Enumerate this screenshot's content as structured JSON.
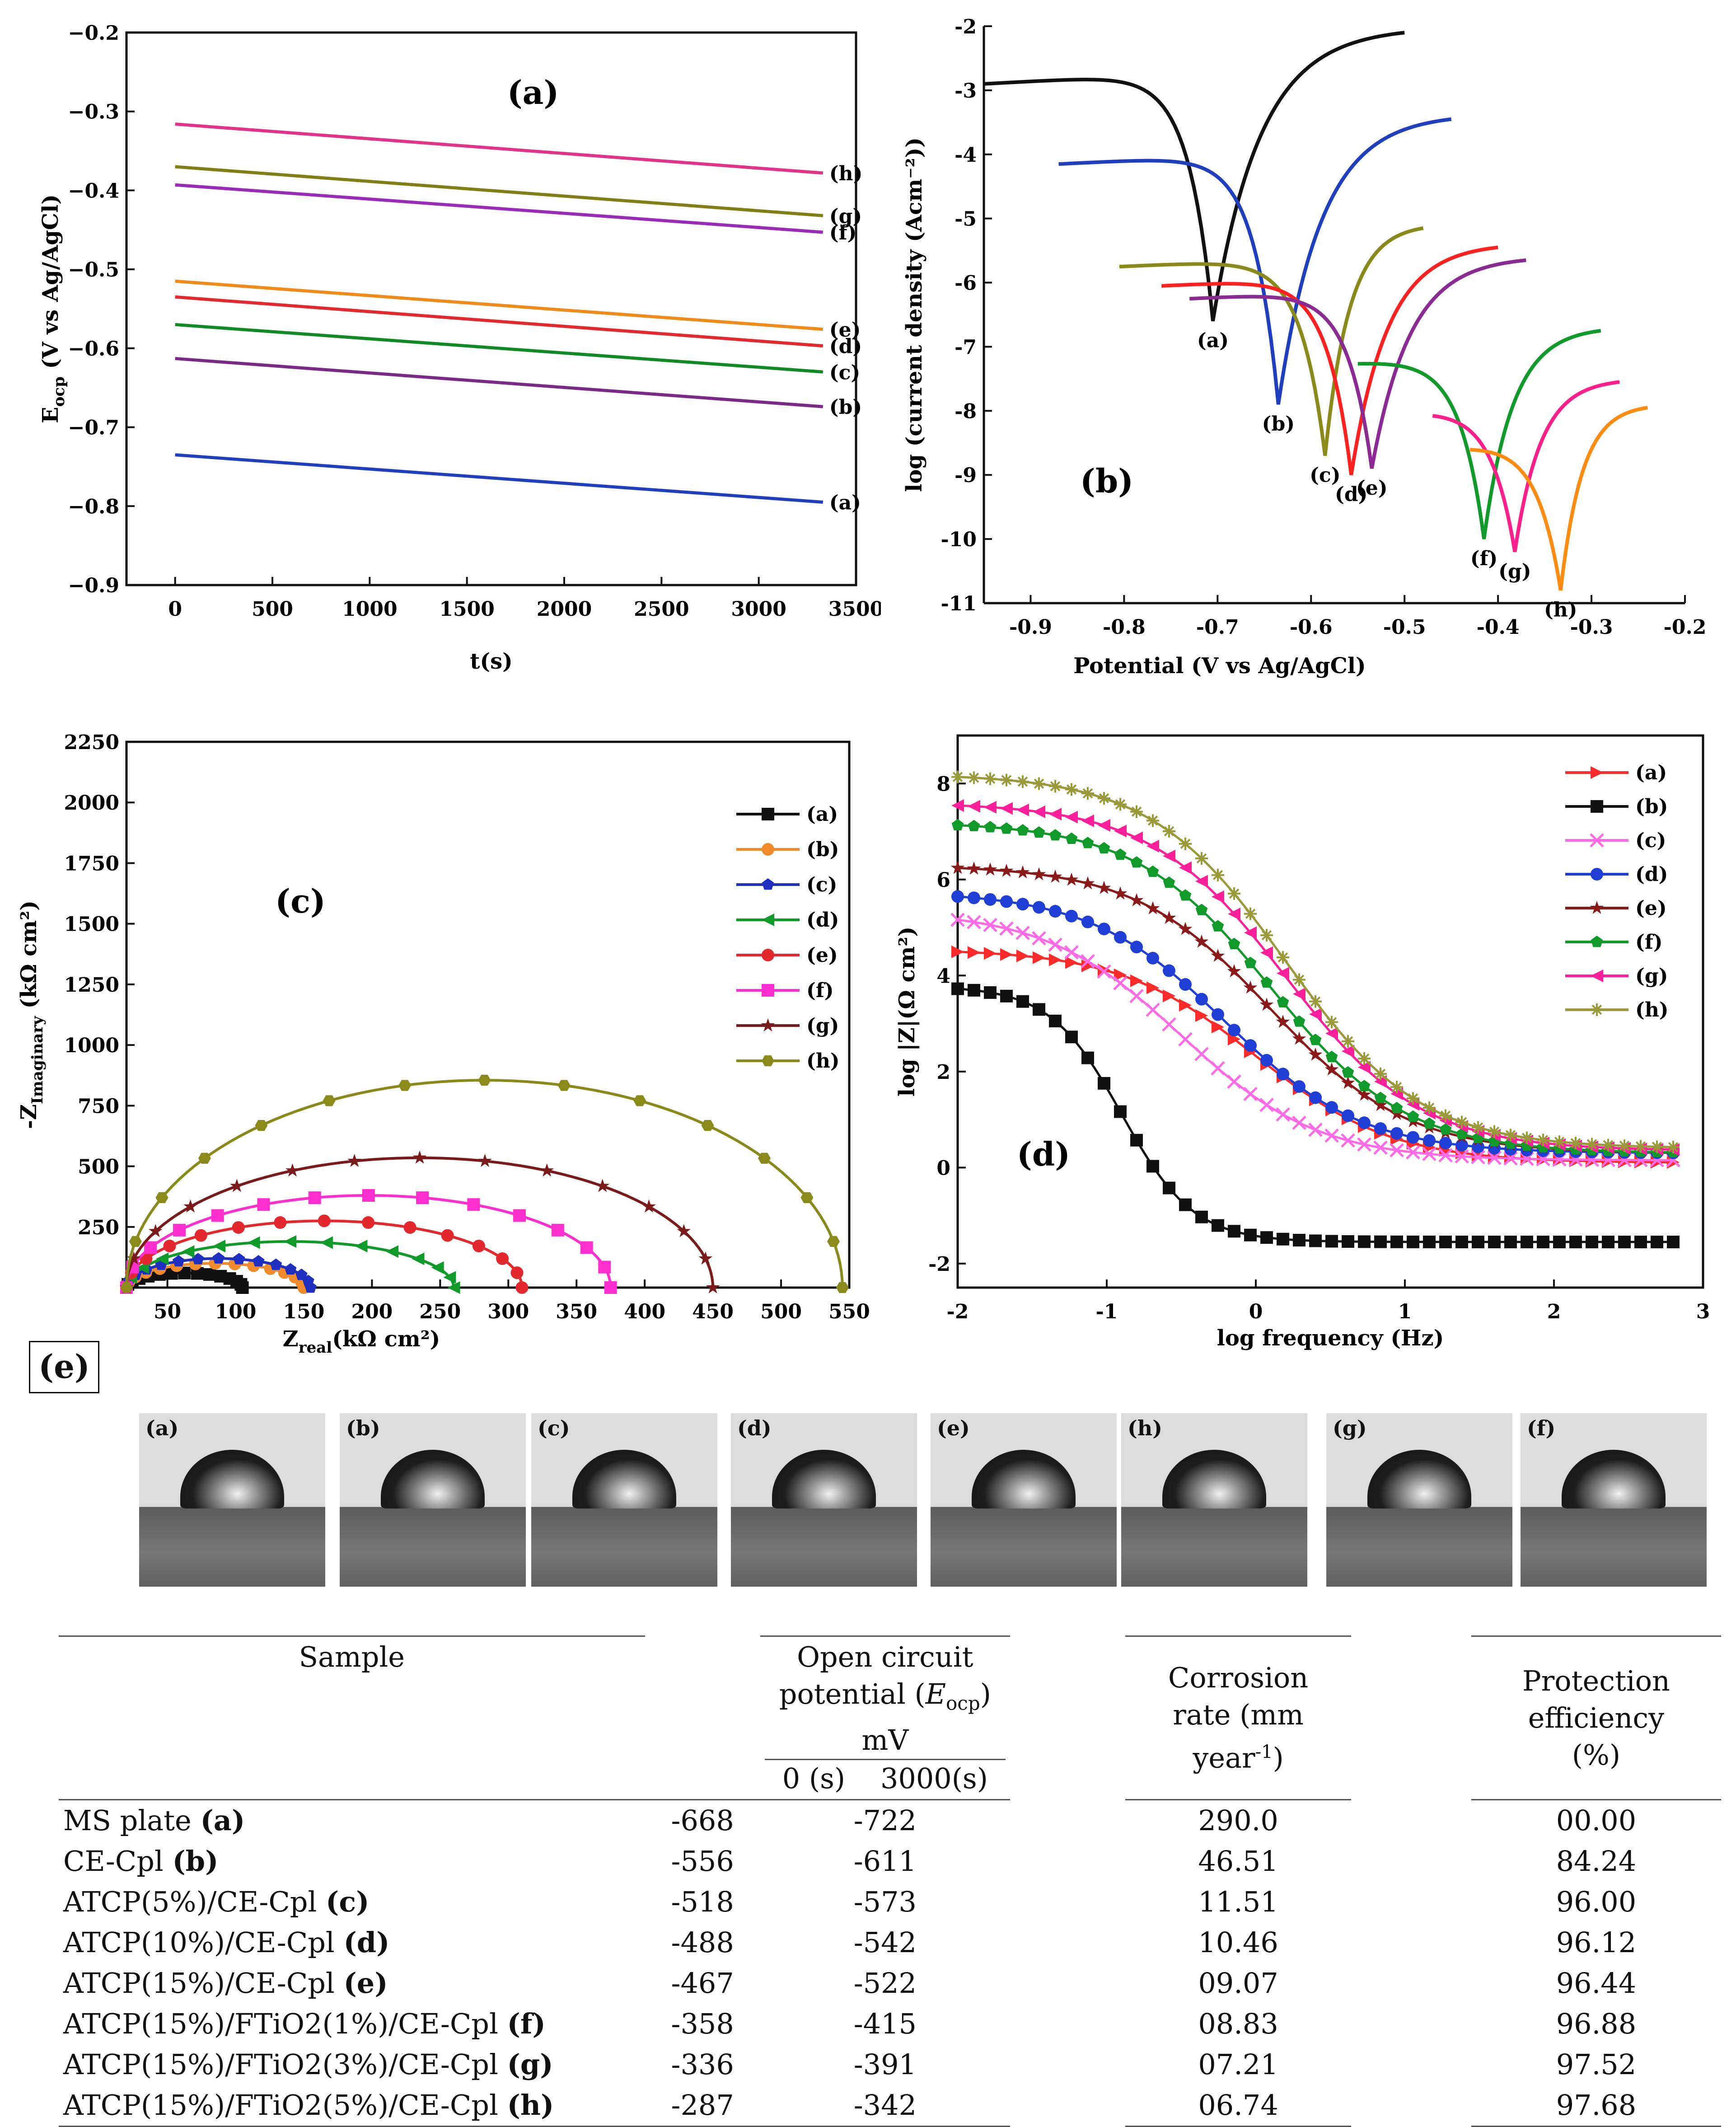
{
  "chart_data": [
    {
      "id": "a",
      "panel_label": "(a)",
      "type": "line",
      "xlabel": "t(s)",
      "ylabel": "E_ocp (V vs Ag/AgCl)",
      "ylabel_main": "E",
      "ylabel_sub": "ocp",
      "ylabel_rest": " (V vs Ag/AgCl)",
      "xlim": [
        -250,
        3500
      ],
      "ylim": [
        -0.9,
        -0.2
      ],
      "xticks": [
        0,
        500,
        1000,
        1500,
        2000,
        2500,
        3000,
        3500
      ],
      "yticks": [
        -0.9,
        -0.8,
        -0.7,
        -0.6,
        -0.5,
        -0.4,
        -0.3,
        -0.2
      ],
      "ytick_labels": [
        "−0.9",
        "−0.8",
        "−0.7",
        "−0.6",
        "−0.5",
        "−0.4",
        "−0.3",
        "−0.2"
      ],
      "series": [
        {
          "name": "(a)",
          "color": "#1f3fbf",
          "x": [
            0,
            3330
          ],
          "y": [
            -0.735,
            -0.795
          ]
        },
        {
          "name": "(b)",
          "color": "#7a2a86",
          "x": [
            0,
            3330
          ],
          "y": [
            -0.613,
            -0.674
          ]
        },
        {
          "name": "(c)",
          "color": "#0f8a24",
          "x": [
            0,
            3330
          ],
          "y": [
            -0.57,
            -0.63
          ]
        },
        {
          "name": "(d)",
          "color": "#e3292d",
          "x": [
            0,
            3330
          ],
          "y": [
            -0.535,
            -0.597
          ]
        },
        {
          "name": "(e)",
          "color": "#f08b1a",
          "x": [
            0,
            3330
          ],
          "y": [
            -0.515,
            -0.576
          ]
        },
        {
          "name": "(f)",
          "color": "#9a2ab8",
          "x": [
            0,
            3330
          ],
          "y": [
            -0.393,
            -0.453
          ]
        },
        {
          "name": "(g)",
          "color": "#7f7f16",
          "x": [
            0,
            3330
          ],
          "y": [
            -0.37,
            -0.432
          ]
        },
        {
          "name": "(h)",
          "color": "#e2328a",
          "x": [
            0,
            3330
          ],
          "y": [
            -0.316,
            -0.378
          ]
        }
      ]
    },
    {
      "id": "b",
      "panel_label": "(b)",
      "type": "line",
      "xlabel": "Potential (V vs Ag/AgCl)",
      "ylabel": "log (current density (Acm⁻²))",
      "xlim": [
        -0.95,
        -0.2
      ],
      "ylim": [
        -11,
        -2
      ],
      "xticks": [
        -0.9,
        -0.8,
        -0.7,
        -0.6,
        -0.5,
        -0.4,
        -0.3,
        -0.2
      ],
      "xtick_labels": [
        "-0.9",
        "-0.8",
        "-0.7",
        "-0.6",
        "-0.5",
        "-0.4",
        "-0.3",
        "-0.2"
      ],
      "yticks": [
        -11,
        -10,
        -9,
        -8,
        -7,
        -6,
        -5,
        -4,
        -3,
        -2
      ],
      "ytick_labels": [
        "-11",
        "-10",
        "-9",
        "-8",
        "-7",
        "-6",
        "-5",
        "-4",
        "-3",
        "-2"
      ],
      "series": [
        {
          "name": "(a)",
          "color": "#111111",
          "ecorr": -0.705,
          "icorr": -6.6,
          "x_start": -0.95,
          "y_start": -2.9,
          "x_end": -0.5,
          "y_end": -2.1
        },
        {
          "name": "(b)",
          "color": "#1f3fbf",
          "ecorr": -0.635,
          "icorr": -7.9,
          "x_start": -0.87,
          "y_start": -4.15,
          "x_end": -0.45,
          "y_end": -3.45
        },
        {
          "name": "(c)",
          "color": "#8a8a1a",
          "ecorr": -0.585,
          "icorr": -8.7,
          "x_start": -0.805,
          "y_start": -5.75,
          "x_end": -0.48,
          "y_end": -5.15
        },
        {
          "name": "(d)",
          "color": "#ff2020",
          "ecorr": -0.557,
          "icorr": -9.0,
          "x_start": -0.76,
          "y_start": -6.05,
          "x_end": -0.4,
          "y_end": -5.45
        },
        {
          "name": "(e)",
          "color": "#8a2a92",
          "ecorr": -0.535,
          "icorr": -8.9,
          "x_start": -0.73,
          "y_start": -6.25,
          "x_end": -0.37,
          "y_end": -5.65
        },
        {
          "name": "(f)",
          "color": "#109a2a",
          "ecorr": -0.415,
          "icorr": -10.0,
          "x_start": -0.55,
          "y_start": -7.25,
          "x_end": -0.29,
          "y_end": -6.75
        },
        {
          "name": "(g)",
          "color": "#ff1f8a",
          "ecorr": -0.382,
          "icorr": -10.2,
          "x_start": -0.47,
          "y_start": -8.0,
          "x_end": -0.27,
          "y_end": -7.55
        },
        {
          "name": "(h)",
          "color": "#ff8c10",
          "ecorr": -0.333,
          "icorr": -10.8,
          "x_start": -0.43,
          "y_start": -8.55,
          "x_end": -0.24,
          "y_end": -7.95
        }
      ]
    },
    {
      "id": "c",
      "panel_label": "(c)",
      "type": "scatter",
      "xlabel": "Z real(kΩ cm²)",
      "xlabel_main": "Z",
      "xlabel_sub": "real",
      "xlabel_rest": "(kΩ cm²)",
      "ylabel": "-Z Imaginary (kΩ cm²)",
      "ylabel_main": "-Z",
      "ylabel_sub": "Imaginary",
      "ylabel_rest": " (kΩ cm²)",
      "xlim": [
        20,
        550
      ],
      "ylim": [
        0,
        2250
      ],
      "xticks": [
        50,
        100,
        150,
        200,
        250,
        300,
        350,
        400,
        450,
        500,
        550
      ],
      "yticks": [
        250,
        500,
        750,
        1000,
        1250,
        1500,
        1750,
        2000,
        2250
      ],
      "series": [
        {
          "name": "(a)",
          "color": "#111111",
          "marker": "square",
          "x_start": 20,
          "x_end": 105,
          "peak": 60
        },
        {
          "name": "(b)",
          "color": "#f08a2a",
          "marker": "circle",
          "x_start": 20,
          "x_end": 150,
          "peak": 100
        },
        {
          "name": "(c)",
          "color": "#1f2fbf",
          "marker": "pentagon",
          "x_start": 20,
          "x_end": 155,
          "peak": 120
        },
        {
          "name": "(d)",
          "color": "#0f9a2a",
          "marker": "triangle-left",
          "x_start": 20,
          "x_end": 260,
          "peak": 190
        },
        {
          "name": "(e)",
          "color": "#e3292d",
          "marker": "circle",
          "x_start": 20,
          "x_end": 310,
          "peak": 275
        },
        {
          "name": "(f)",
          "color": "#ff2ecf",
          "marker": "square",
          "x_start": 20,
          "x_end": 375,
          "peak": 380
        },
        {
          "name": "(g)",
          "color": "#7a1a1a",
          "marker": "star",
          "x_start": 20,
          "x_end": 450,
          "peak": 535
        },
        {
          "name": "(h)",
          "color": "#8a8a1a",
          "marker": "hexagon",
          "x_start": 20,
          "x_end": 545,
          "peak": 855
        }
      ]
    },
    {
      "id": "d",
      "panel_label": "(d)",
      "type": "line",
      "xlabel": "log frequency (Hz)",
      "ylabel": "log |Z|(Ω cm²)",
      "xlim": [
        -2,
        3
      ],
      "ylim": [
        -2.5,
        9
      ],
      "xticks": [
        -2,
        -1,
        0,
        1,
        2,
        3
      ],
      "yticks": [
        -2,
        0,
        2,
        4,
        6,
        8
      ],
      "series": [
        {
          "name": "(a)",
          "color": "#ff2a2a",
          "marker": "triangle-right",
          "plateau": 4.55,
          "break": 0.0,
          "end": 0.1
        },
        {
          "name": "(b)",
          "color": "#111111",
          "marker": "square",
          "plateau": 3.78,
          "break": -0.9,
          "end": -1.55
        },
        {
          "name": "(c)",
          "color": "#ff6ae6",
          "marker": "x",
          "plateau": 5.35,
          "break": -0.5,
          "end": 0.15
        },
        {
          "name": "(d)",
          "color": "#1f3fd6",
          "marker": "circle",
          "plateau": 5.75,
          "break": -0.2,
          "end": 0.3
        },
        {
          "name": "(e)",
          "color": "#8a1a1a",
          "marker": "star",
          "plateau": 6.3,
          "break": 0.1,
          "end": 0.3
        },
        {
          "name": "(f)",
          "color": "#0f9a2a",
          "marker": "pentagon",
          "plateau": 7.2,
          "break": 0.1,
          "end": 0.3
        },
        {
          "name": "(g)",
          "color": "#ff1f9a",
          "marker": "triangle-left",
          "plateau": 7.6,
          "break": 0.2,
          "end": 0.35
        },
        {
          "name": "(h)",
          "color": "#9a9a3a",
          "marker": "asterisk",
          "plateau": 8.2,
          "break": 0.2,
          "end": 0.4
        }
      ]
    }
  ],
  "panel_e": {
    "label": "(e)",
    "photos": [
      "(a)",
      "(b)",
      "(c)",
      "(d)",
      "(e)",
      "(h)",
      "(g)",
      "(f)"
    ]
  },
  "table": {
    "headers": {
      "sample": "Sample",
      "ocp_line1": "Open circuit",
      "ocp_line2_pre": "potential (",
      "ocp_line2_em": "E",
      "ocp_line2_sub": "ocp",
      "ocp_line2_post": ") mV",
      "ocp_sub0": "0 (s)",
      "ocp_sub3000": "3000(s)",
      "rate_line1": "Corrosion",
      "rate_line2": "rate (mm",
      "rate_line3_pre": "year",
      "rate_line3_sup": "-1",
      "rate_line3_post": ")",
      "eff_line1": "Protection",
      "eff_line2": "efficiency",
      "eff_line3": "(%)"
    },
    "rows": [
      {
        "name": "MS plate ",
        "tag": "(a)",
        "ocp0": "-668",
        "ocp3000": "-722",
        "rate": "290.0",
        "eff": "00.00"
      },
      {
        "name": "CE-Cpl ",
        "tag": "(b)",
        "ocp0": "-556",
        "ocp3000": "-611",
        "rate": "46.51",
        "eff": "84.24"
      },
      {
        "name": "ATCP(5%)/CE-Cpl ",
        "tag": "(c)",
        "ocp0": "-518",
        "ocp3000": "-573",
        "rate": "11.51",
        "eff": "96.00"
      },
      {
        "name": "ATCP(10%)/CE-Cpl ",
        "tag": "(d)",
        "ocp0": "-488",
        "ocp3000": "-542",
        "rate": "10.46",
        "eff": "96.12"
      },
      {
        "name": "ATCP(15%)/CE-Cpl ",
        "tag": "(e)",
        "ocp0": "-467",
        "ocp3000": "-522",
        "rate": "09.07",
        "eff": "96.44"
      },
      {
        "name": "ATCP(15%)/FTiO2(1%)/CE-Cpl ",
        "tag": "(f)",
        "ocp0": "-358",
        "ocp3000": "-415",
        "rate": "08.83",
        "eff": "96.88"
      },
      {
        "name": "ATCP(15%)/FTiO2(3%)/CE-Cpl ",
        "tag": "(g)",
        "ocp0": "-336",
        "ocp3000": "-391",
        "rate": "07.21",
        "eff": "97.52"
      },
      {
        "name": "ATCP(15%)/FTiO2(5%)/CE-Cpl ",
        "tag": "(h)",
        "ocp0": "-287",
        "ocp3000": "-342",
        "rate": "06.74",
        "eff": "97.68"
      }
    ]
  }
}
